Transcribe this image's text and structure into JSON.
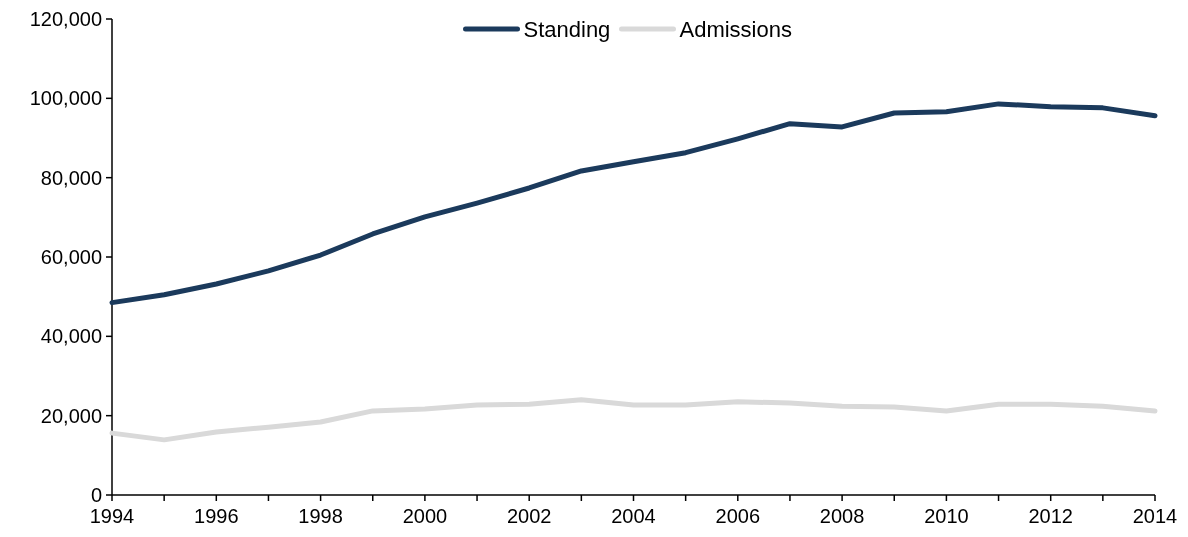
{
  "chart_data": {
    "type": "line",
    "x": [
      1994,
      1995,
      1996,
      1997,
      1998,
      1999,
      2000,
      2001,
      2002,
      2003,
      2004,
      2005,
      2006,
      2007,
      2008,
      2009,
      2010,
      2011,
      2012,
      2013,
      2014
    ],
    "series": [
      {
        "name": "Standing",
        "color": "#1b3a5c",
        "values": [
          48500,
          50500,
          53200,
          56500,
          60500,
          65800,
          70100,
          73600,
          77400,
          81700,
          84000,
          86300,
          89800,
          93600,
          92800,
          96300,
          96600,
          98600,
          97900,
          97600,
          95600
        ]
      },
      {
        "name": "Admissions",
        "color": "#d9d9d9",
        "values": [
          15600,
          13900,
          15900,
          17100,
          18400,
          21200,
          21700,
          22700,
          22900,
          24000,
          22700,
          22700,
          23500,
          23200,
          22400,
          22200,
          21200,
          22900,
          22900,
          22400,
          21200
        ]
      }
    ],
    "xlim": [
      1994,
      2014
    ],
    "xticks": [
      {
        "value": 1994,
        "label": "1994"
      },
      {
        "value": 1995,
        "label": null
      },
      {
        "value": 1996,
        "label": "1996"
      },
      {
        "value": 1997,
        "label": null
      },
      {
        "value": 1998,
        "label": "1998"
      },
      {
        "value": 1999,
        "label": null
      },
      {
        "value": 2000,
        "label": "2000"
      },
      {
        "value": 2001,
        "label": null
      },
      {
        "value": 2002,
        "label": "2002"
      },
      {
        "value": 2003,
        "label": null
      },
      {
        "value": 2004,
        "label": "2004"
      },
      {
        "value": 2005,
        "label": null
      },
      {
        "value": 2006,
        "label": "2006"
      },
      {
        "value": 2007,
        "label": null
      },
      {
        "value": 2008,
        "label": "2008"
      },
      {
        "value": 2009,
        "label": null
      },
      {
        "value": 2010,
        "label": "2010"
      },
      {
        "value": 2011,
        "label": null
      },
      {
        "value": 2012,
        "label": "2012"
      },
      {
        "value": 2013,
        "label": null
      },
      {
        "value": 2014,
        "label": "2014"
      }
    ],
    "ylim": [
      0,
      120000
    ],
    "yticks": [
      {
        "value": 0,
        "label": "0"
      },
      {
        "value": 20000,
        "label": "20,000"
      },
      {
        "value": 40000,
        "label": "40,000"
      },
      {
        "value": 60000,
        "label": "60,000"
      },
      {
        "value": 80000,
        "label": "80,000"
      },
      {
        "value": 100000,
        "label": "100,000"
      },
      {
        "value": 120000,
        "label": "120,000"
      }
    ],
    "grid": false,
    "legend": "top",
    "marker": "none",
    "line_style": "solid"
  }
}
